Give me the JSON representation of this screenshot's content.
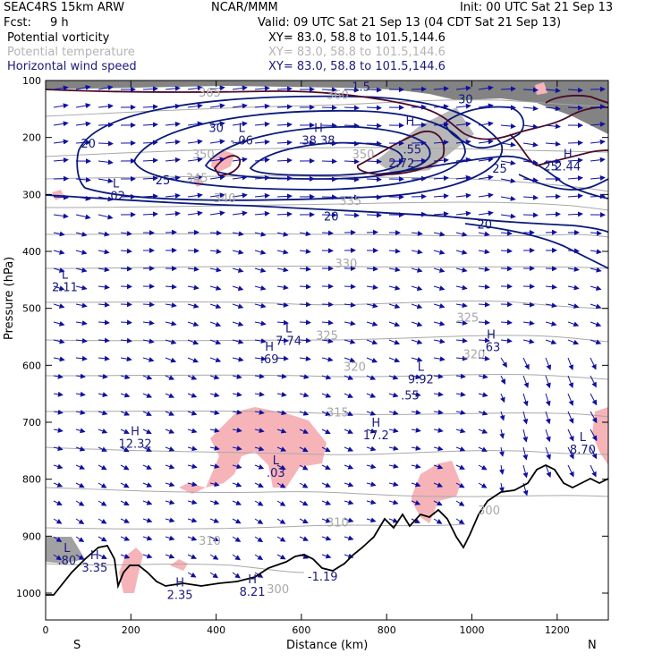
{
  "header": {
    "model": "SEAC4RS 15km ARW",
    "org": "NCAR/MMM",
    "init": "Init: 00 UTC Sat 21 Sep 13",
    "fcst_label": "Fcst:",
    "fcst_value": "9 h",
    "valid": "Valid: 09 UTC Sat 21 Sep 13 (04 CDT Sat 21 Sep 13)"
  },
  "legend": [
    {
      "name": "Potential vorticity",
      "color": "#000000",
      "xy": "XY=  83.0, 58.8 to 101.5,144.6"
    },
    {
      "name": "Potential temperature",
      "color": "#b4b4b4",
      "xy": "XY=  83.0, 58.8 to 101.5,144.6"
    },
    {
      "name": "Horizontal wind speed",
      "color": "#1a1a7a",
      "xy": "XY=  83.0, 58.8 to 101.5,144.6"
    }
  ],
  "colors": {
    "wind_contour": "#0a1a7a",
    "theta_contour": "#a8a8a8",
    "pv_contour": "#4a0a2a",
    "vector": "#1010a0",
    "pv_fill": "#f6b4b8",
    "terrain": "#000000",
    "label": "#1a1a7a"
  },
  "chart_data": {
    "type": "cross-section",
    "xlabel": "Distance (km)",
    "ylabel": "Pressure (hPa)",
    "xlim": [
      0,
      1320
    ],
    "ylim": [
      1050,
      100
    ],
    "x_ticks": [
      0,
      200,
      400,
      600,
      800,
      1000,
      1200
    ],
    "y_ticks": [
      100,
      200,
      300,
      400,
      500,
      600,
      700,
      800,
      900,
      1000
    ],
    "end_labels": {
      "left": "S",
      "right": "N"
    },
    "wind_speed_labels": [
      {
        "text": "20",
        "x": 100,
        "p": 218
      },
      {
        "text": "30",
        "x": 400,
        "p": 190
      },
      {
        "text": "25",
        "x": 275,
        "p": 282
      },
      {
        "text": "20",
        "x": 670,
        "p": 346
      },
      {
        "text": "30",
        "x": 985,
        "p": 140
      },
      {
        "text": "25",
        "x": 1065,
        "p": 262
      },
      {
        "text": "20",
        "x": 1030,
        "p": 360
      },
      {
        "text": "25",
        "x": 1185,
        "p": 258
      }
    ],
    "theta_labels": [
      {
        "text": "365",
        "x": 385,
        "p": 128
      },
      {
        "text": "360",
        "x": 685,
        "p": 132
      },
      {
        "text": "350",
        "x": 370,
        "p": 237
      },
      {
        "text": "350",
        "x": 745,
        "p": 237
      },
      {
        "text": "345",
        "x": 355,
        "p": 278
      },
      {
        "text": "340",
        "x": 420,
        "p": 314
      },
      {
        "text": "335",
        "x": 715,
        "p": 318
      },
      {
        "text": "330",
        "x": 705,
        "p": 428
      },
      {
        "text": "325",
        "x": 990,
        "p": 523
      },
      {
        "text": "325",
        "x": 660,
        "p": 555
      },
      {
        "text": "320",
        "x": 725,
        "p": 610
      },
      {
        "text": "320",
        "x": 1005,
        "p": 588
      },
      {
        "text": "315",
        "x": 685,
        "p": 690
      },
      {
        "text": "310",
        "x": 385,
        "p": 915
      },
      {
        "text": "310",
        "x": 685,
        "p": 883
      },
      {
        "text": "300",
        "x": 545,
        "p": 1000
      },
      {
        "text": "300",
        "x": 1040,
        "p": 862
      }
    ],
    "extrema": [
      {
        "letter": "L",
        "value": "-.06",
        "x": 460,
        "p": 212
      },
      {
        "letter": "H",
        "value": "38.38",
        "x": 640,
        "p": 212
      },
      {
        "letter": "H",
        "value": "",
        "x": 855,
        "p": 200
      },
      {
        "letter": "",
        "value": ".55",
        "x": 860,
        "p": 228
      },
      {
        "letter": "",
        "value": "2.72",
        "x": 835,
        "p": 252
      },
      {
        "letter": "L",
        "value": ".02",
        "x": 165,
        "p": 310
      },
      {
        "letter": "H",
        "value": "2.44",
        "x": 1225,
        "p": 258
      },
      {
        "letter": "L",
        "value": "2.11",
        "x": 45,
        "p": 470
      },
      {
        "letter": "L",
        "value": "7.74",
        "x": 570,
        "p": 564
      },
      {
        "letter": "H",
        "value": ".69",
        "x": 525,
        "p": 596
      },
      {
        "letter": "H",
        "value": ".63",
        "x": 1045,
        "p": 575
      },
      {
        "letter": "L",
        "value": "9.92",
        "x": 880,
        "p": 632
      },
      {
        "letter": "",
        "value": ".55",
        "x": 855,
        "p": 660
      },
      {
        "letter": "H",
        "value": "12.32",
        "x": 210,
        "p": 745
      },
      {
        "letter": "H",
        "value": "17.2",
        "x": 775,
        "p": 730
      },
      {
        "letter": "L",
        "value": ".03",
        "x": 540,
        "p": 796
      },
      {
        "letter": "L",
        "value": "8.70",
        "x": 1260,
        "p": 755
      },
      {
        "letter": "L",
        "value": ".80",
        "x": 50,
        "p": 950
      },
      {
        "letter": "H",
        "value": "3.35",
        "x": 115,
        "p": 962
      },
      {
        "letter": "H",
        "value": "2.35",
        "x": 315,
        "p": 1010
      },
      {
        "letter": "H",
        "value": "8.21",
        "x": 485,
        "p": 1005
      },
      {
        "letter": "",
        "value": "-1.19",
        "x": 650,
        "p": 978
      },
      {
        "letter": "",
        "value": "1.5",
        "x": 740,
        "p": 118
      }
    ]
  }
}
